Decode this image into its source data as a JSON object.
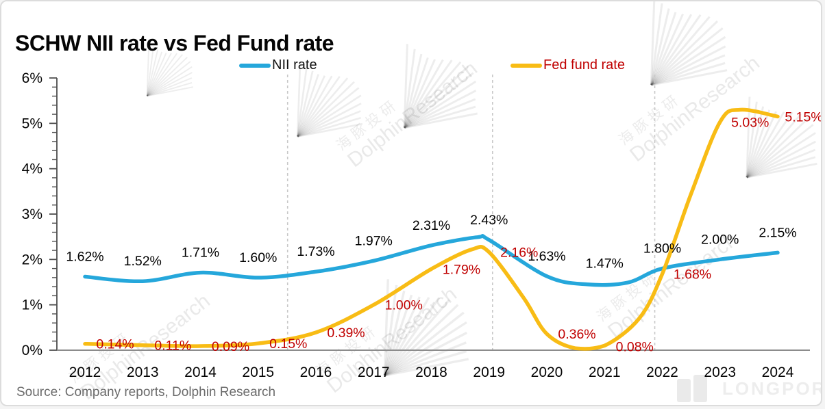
{
  "title": "SCHW NII rate vs Fed Fund rate",
  "source": "Source: Company reports, Dolphin Research",
  "watermark": {
    "cn": "海豚投研",
    "en": "DolphinResearch",
    "logo_text": "LONGPORT"
  },
  "legend": [
    {
      "label": "NII rate",
      "color": "#25A7DB",
      "text_color": "#111111"
    },
    {
      "label": "Fed fund rate",
      "color": "#F8BC15",
      "text_color": "#C00000"
    }
  ],
  "chart_data": {
    "type": "line",
    "title": "SCHW NII rate vs Fed Fund rate",
    "categories": [
      2012,
      2013,
      2014,
      2015,
      2016,
      2017,
      2018,
      2019,
      2020,
      2021,
      2022,
      2023,
      2024
    ],
    "x_tick_labels": [
      "2012",
      "2013",
      "2014",
      "2015",
      "2016",
      "2017",
      "2018",
      "2019",
      "2020",
      "2021",
      "2022",
      "2023",
      "2024"
    ],
    "y_tick_labels": [
      "0%",
      "1%",
      "2%",
      "3%",
      "4%",
      "5%",
      "6%"
    ],
    "ylim": [
      0,
      6
    ],
    "legend_position": "top",
    "grid": "three dashed vertical reference lines",
    "vlines": [
      2015.51,
      2019.06,
      2021.87
    ],
    "series": [
      {
        "name": "NII rate",
        "color": "#25A7DB",
        "label_color": "#000000",
        "values": [
          1.62,
          1.52,
          1.71,
          1.6,
          1.73,
          1.97,
          2.31,
          2.43,
          1.63,
          1.47,
          1.8,
          2.0,
          2.15
        ],
        "labels": [
          "1.62%",
          "1.52%",
          "1.71%",
          "1.60%",
          "1.73%",
          "1.97%",
          "2.31%",
          "2.43%",
          "1.63%",
          "1.47%",
          "1.80%",
          "2.00%",
          "2.15%"
        ],
        "curve_points": [
          [
            2012,
            1.62
          ],
          [
            2013,
            1.52
          ],
          [
            2014,
            1.71
          ],
          [
            2015,
            1.6
          ],
          [
            2016,
            1.73
          ],
          [
            2017,
            1.97
          ],
          [
            2018,
            2.31
          ],
          [
            2018.8,
            2.49
          ],
          [
            2019,
            2.43
          ],
          [
            2020,
            1.63
          ],
          [
            2020.7,
            1.45
          ],
          [
            2021.4,
            1.49
          ],
          [
            2022,
            1.8
          ],
          [
            2023,
            2.0
          ],
          [
            2024,
            2.15
          ]
        ]
      },
      {
        "name": "Fed fund rate",
        "color": "#F8BC15",
        "label_color": "#C00000",
        "values": [
          0.14,
          0.11,
          0.09,
          0.15,
          0.39,
          1.0,
          1.79,
          2.16,
          0.36,
          0.08,
          1.68,
          5.03,
          5.15
        ],
        "labels": [
          "0.14%",
          "0.11%",
          "0.09%",
          "0.15%",
          "0.39%",
          "1.00%",
          "1.79%",
          "2.16%",
          "0.36%",
          "0.08%",
          "1.68%",
          "5.03%",
          "5.15%"
        ],
        "curve_points": [
          [
            2012,
            0.14
          ],
          [
            2013,
            0.11
          ],
          [
            2014,
            0.09
          ],
          [
            2015,
            0.15
          ],
          [
            2016,
            0.39
          ],
          [
            2017,
            1.0
          ],
          [
            2018,
            1.79
          ],
          [
            2018.7,
            2.22
          ],
          [
            2019,
            2.16
          ],
          [
            2019.6,
            1.15
          ],
          [
            2020,
            0.36
          ],
          [
            2020.5,
            0.04
          ],
          [
            2021,
            0.1
          ],
          [
            2021.6,
            0.7
          ],
          [
            2022,
            1.68
          ],
          [
            2022.5,
            3.45
          ],
          [
            2023,
            5.03
          ],
          [
            2023.35,
            5.3
          ],
          [
            2024,
            5.15
          ]
        ]
      }
    ]
  }
}
